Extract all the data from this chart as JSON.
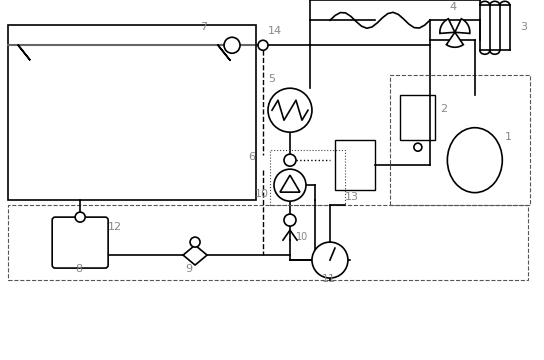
{
  "bg_color": "#ffffff",
  "line_color": "#000000",
  "dashed_color": "#555555",
  "label_color": "#888888",
  "figsize": [
    5.44,
    3.6
  ],
  "dpi": 100
}
